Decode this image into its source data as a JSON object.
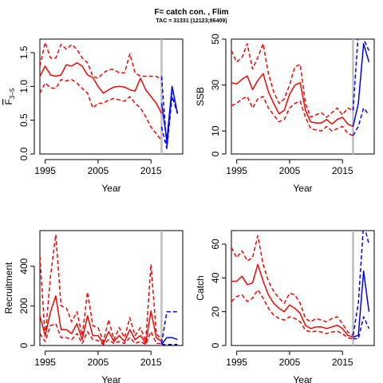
{
  "title": "F= catch con. , Flim",
  "subtitle": "TAC = 31331 (12123;86409)",
  "colors": {
    "historic": "#ff0000",
    "projection": "#0000ff",
    "divider": "#bebebe"
  },
  "chart_data": [
    {
      "type": "line",
      "id": "fbar",
      "xlabel": "Year",
      "ylabel": "F̅ 3−5",
      "ylabel_main": "F",
      "ylabel_sub": "3−5",
      "xlim": [
        1994,
        2021
      ],
      "ylim": [
        0,
        1.7
      ],
      "xticks": [
        1995,
        2005,
        2015
      ],
      "yticks": [
        0.0,
        0.5,
        1.0,
        1.5
      ],
      "ytick_labels": [
        "0.0",
        "0.5",
        "1.0",
        "1.5"
      ],
      "divider_year": 2017,
      "series": [
        {
          "role": "historic",
          "style": "dashed",
          "x": [
            1994,
            1995,
            1996,
            1997,
            1998,
            1999,
            2000,
            2001,
            2002,
            2003,
            2004,
            2005,
            2006,
            2007,
            2008,
            2009,
            2010,
            2011,
            2012,
            2013,
            2014,
            2015,
            2016,
            2017
          ],
          "values": [
            1.3,
            1.65,
            1.42,
            1.42,
            1.62,
            1.55,
            1.62,
            1.55,
            1.42,
            1.35,
            1.15,
            1.12,
            1.2,
            1.25,
            1.25,
            1.2,
            1.2,
            1.48,
            1.2,
            1.15,
            1.15,
            1.15,
            1.15,
            1.1
          ]
        },
        {
          "role": "historic",
          "style": "solid",
          "x": [
            1994,
            1995,
            1996,
            1997,
            1998,
            1999,
            2000,
            2001,
            2002,
            2003,
            2004,
            2005,
            2006,
            2007,
            2008,
            2009,
            2010,
            2011,
            2012,
            2013,
            2014,
            2015,
            2016,
            2017
          ],
          "values": [
            1.15,
            1.3,
            1.17,
            1.15,
            1.17,
            1.32,
            1.3,
            1.35,
            1.3,
            1.17,
            1.13,
            1.0,
            0.9,
            0.95,
            0.99,
            1.0,
            0.99,
            0.95,
            0.93,
            1.12,
            0.95,
            0.85,
            0.75,
            0.6
          ]
        },
        {
          "role": "historic",
          "style": "dashed",
          "x": [
            1994,
            1995,
            1996,
            1997,
            1998,
            1999,
            2000,
            2001,
            2002,
            2003,
            2004,
            2005,
            2006,
            2007,
            2008,
            2009,
            2010,
            2011,
            2012,
            2013,
            2014,
            2015,
            2016,
            2017
          ],
          "values": [
            0.9,
            1.05,
            0.98,
            0.97,
            1.1,
            1.08,
            1.1,
            1.05,
            0.97,
            0.9,
            0.68,
            0.75,
            0.75,
            0.8,
            0.82,
            0.8,
            0.78,
            0.85,
            0.75,
            0.68,
            0.55,
            0.4,
            0.3,
            0.2
          ]
        },
        {
          "role": "projection",
          "style": "dashed",
          "x": [
            2017,
            2018,
            2019,
            2020
          ],
          "values": [
            1.15,
            0.1,
            0.98,
            0.6
          ]
        },
        {
          "role": "projection",
          "style": "solid",
          "x": [
            2017,
            2018,
            2019,
            2020
          ],
          "values": [
            0.75,
            0.2,
            1.0,
            0.6
          ]
        },
        {
          "role": "projection",
          "style": "dashed",
          "x": [
            2017,
            2018,
            2019,
            2020
          ],
          "values": [
            0.4,
            0.08,
            0.85,
            0.6
          ]
        }
      ]
    },
    {
      "type": "line",
      "id": "ssb",
      "xlabel": "Year",
      "ylabel": "SSB",
      "xlim": [
        1994,
        2021
      ],
      "ylim": [
        0,
        50
      ],
      "xticks": [
        1995,
        2005,
        2015
      ],
      "yticks": [
        0,
        10,
        30,
        50
      ],
      "ytick_labels": [
        "0",
        "10",
        "30",
        "50"
      ],
      "divider_year": 2017,
      "series": [
        {
          "role": "historic",
          "style": "dashed",
          "x": [
            1994,
            1995,
            1996,
            1997,
            1998,
            1999,
            2000,
            2001,
            2002,
            2003,
            2004,
            2005,
            2006,
            2007,
            2008,
            2009,
            2010,
            2011,
            2012,
            2013,
            2014,
            2015,
            2016,
            2017
          ],
          "values": [
            45,
            40,
            42,
            48,
            37,
            42,
            48,
            35,
            27,
            22,
            24,
            30,
            38,
            39,
            22,
            16,
            17,
            18,
            16,
            18,
            20,
            17,
            20,
            19
          ]
        },
        {
          "role": "historic",
          "style": "solid",
          "x": [
            1994,
            1995,
            1996,
            1997,
            1998,
            1999,
            2000,
            2001,
            2002,
            2003,
            2004,
            2005,
            2006,
            2007,
            2008,
            2009,
            2010,
            2011,
            2012,
            2013,
            2014,
            2015,
            2016,
            2017
          ],
          "values": [
            31,
            30.5,
            32.5,
            34,
            28,
            32,
            35,
            27,
            22,
            17.5,
            19,
            26,
            30,
            31,
            19,
            14,
            13.5,
            13.5,
            15,
            13,
            15,
            16,
            13,
            12
          ]
        },
        {
          "role": "historic",
          "style": "dashed",
          "x": [
            1994,
            1995,
            1996,
            1997,
            1998,
            1999,
            2000,
            2001,
            2002,
            2003,
            2004,
            2005,
            2006,
            2007,
            2008,
            2009,
            2010,
            2011,
            2012,
            2013,
            2014,
            2015,
            2016,
            2017
          ],
          "values": [
            21,
            22,
            24,
            25,
            20,
            24,
            25,
            20,
            17,
            14,
            15,
            20,
            22,
            23,
            16,
            11,
            10.5,
            10,
            12,
            10,
            11,
            12,
            9,
            8
          ]
        },
        {
          "role": "projection",
          "style": "dashed",
          "x": [
            2017,
            2018,
            2019,
            2020
          ],
          "values": [
            19,
            53,
            50,
            45
          ]
        },
        {
          "role": "projection",
          "style": "solid",
          "x": [
            2017,
            2018,
            2019,
            2020
          ],
          "values": [
            12,
            22,
            48,
            40
          ]
        },
        {
          "role": "projection",
          "style": "dashed",
          "x": [
            2017,
            2018,
            2019,
            2020
          ],
          "values": [
            8,
            12,
            20,
            17
          ]
        }
      ]
    },
    {
      "type": "line",
      "id": "recruitment",
      "xlabel": "Year",
      "ylabel": "Recruitment",
      "xlim": [
        1994,
        2021
      ],
      "ylim": [
        0,
        580
      ],
      "xticks": [
        1995,
        2005,
        2015
      ],
      "yticks": [
        0,
        200,
        400
      ],
      "ytick_labels": [
        "0",
        "200",
        "400"
      ],
      "divider_year": 2017,
      "series": [
        {
          "role": "historic",
          "style": "dashed",
          "x": [
            1994,
            1995,
            1996,
            1997,
            1998,
            1999,
            2000,
            2001,
            2002,
            2003,
            2004,
            2005,
            2006,
            2007,
            2008,
            2009,
            2010,
            2011,
            2012,
            2013,
            2014,
            2015,
            2016,
            2017
          ],
          "values": [
            450,
            40,
            350,
            560,
            200,
            190,
            120,
            170,
            50,
            270,
            100,
            90,
            20,
            130,
            30,
            90,
            40,
            140,
            50,
            90,
            20,
            410,
            60,
            30
          ]
        },
        {
          "role": "historic",
          "style": "solid",
          "x": [
            1994,
            1995,
            1996,
            1997,
            1998,
            1999,
            2000,
            2001,
            2002,
            2003,
            2004,
            2005,
            2006,
            2007,
            2008,
            2009,
            2010,
            2011,
            2012,
            2013,
            2014,
            2015,
            2016,
            2017
          ],
          "values": [
            150,
            50,
            170,
            250,
            80,
            80,
            60,
            110,
            30,
            150,
            50,
            50,
            10,
            70,
            20,
            50,
            20,
            80,
            30,
            50,
            10,
            175,
            40,
            20
          ]
        },
        {
          "role": "historic",
          "style": "dashed",
          "x": [
            1994,
            1995,
            1996,
            1997,
            1998,
            1999,
            2000,
            2001,
            2002,
            2003,
            2004,
            2005,
            2006,
            2007,
            2008,
            2009,
            2010,
            2011,
            2012,
            2013,
            2014,
            2015,
            2016,
            2017
          ],
          "values": [
            60,
            20,
            100,
            110,
            40,
            40,
            30,
            60,
            10,
            70,
            30,
            25,
            5,
            30,
            10,
            20,
            10,
            40,
            10,
            20,
            5,
            70,
            10,
            10
          ]
        },
        {
          "role": "projection",
          "style": "dashed",
          "x": [
            2017,
            2018,
            2019,
            2020
          ],
          "values": [
            10,
            170,
            170,
            170
          ]
        },
        {
          "role": "projection",
          "style": "solid",
          "x": [
            2017,
            2018,
            2019,
            2020
          ],
          "values": [
            5,
            40,
            40,
            30
          ]
        },
        {
          "role": "projection",
          "style": "dashed",
          "x": [
            2017,
            2018,
            2019,
            2020
          ],
          "values": [
            5,
            5,
            5,
            5
          ]
        }
      ]
    },
    {
      "type": "line",
      "id": "catch",
      "xlabel": "Year",
      "ylabel": "Catch",
      "xlim": [
        1994,
        2021
      ],
      "ylim": [
        0,
        68
      ],
      "xticks": [
        1995,
        2005,
        2015
      ],
      "yticks": [
        0,
        20,
        40,
        60
      ],
      "ytick_labels": [
        "0",
        "20",
        "40",
        "60"
      ],
      "divider_year": 2017,
      "series": [
        {
          "role": "historic",
          "style": "dashed",
          "x": [
            1994,
            1995,
            1996,
            1997,
            1998,
            1999,
            2000,
            2001,
            2002,
            2003,
            2004,
            2005,
            2006,
            2007,
            2008,
            2009,
            2010,
            2011,
            2012,
            2013,
            2014,
            2015,
            2016,
            2017
          ],
          "values": [
            58,
            52,
            56,
            50,
            52,
            65,
            48,
            38,
            32,
            28,
            25,
            31,
            30,
            25,
            16,
            14,
            16,
            15,
            14,
            16,
            17,
            13,
            8,
            6
          ]
        },
        {
          "role": "historic",
          "style": "solid",
          "x": [
            1994,
            1995,
            1996,
            1997,
            1998,
            1999,
            2000,
            2001,
            2002,
            2003,
            2004,
            2005,
            2006,
            2007,
            2008,
            2009,
            2010,
            2011,
            2012,
            2013,
            2014,
            2015,
            2016,
            2017
          ],
          "values": [
            38,
            38,
            41,
            36,
            37,
            48,
            38,
            30,
            25,
            22,
            20,
            24,
            22,
            19,
            12,
            10,
            11,
            11,
            10,
            11,
            12,
            10,
            6,
            5
          ]
        },
        {
          "role": "historic",
          "style": "dashed",
          "x": [
            1994,
            1995,
            1996,
            1997,
            1998,
            1999,
            2000,
            2001,
            2002,
            2003,
            2004,
            2005,
            2006,
            2007,
            2008,
            2009,
            2010,
            2011,
            2012,
            2013,
            2014,
            2015,
            2016,
            2017
          ],
          "values": [
            26,
            29,
            30,
            26,
            28,
            33,
            28,
            22,
            18,
            16,
            15,
            17,
            16,
            14,
            9,
            8,
            8.5,
            8,
            7,
            8,
            8.5,
            7,
            4.5,
            4
          ]
        },
        {
          "role": "projection",
          "style": "dashed",
          "x": [
            2017,
            2018,
            2019,
            2020
          ],
          "values": [
            6,
            25,
            72,
            60
          ]
        },
        {
          "role": "projection",
          "style": "solid",
          "x": [
            2017,
            2018,
            2019,
            2020
          ],
          "values": [
            5,
            6,
            44,
            20
          ]
        },
        {
          "role": "projection",
          "style": "dashed",
          "x": [
            2017,
            2018,
            2019,
            2020
          ],
          "values": [
            4,
            4,
            17,
            10
          ]
        }
      ]
    }
  ]
}
